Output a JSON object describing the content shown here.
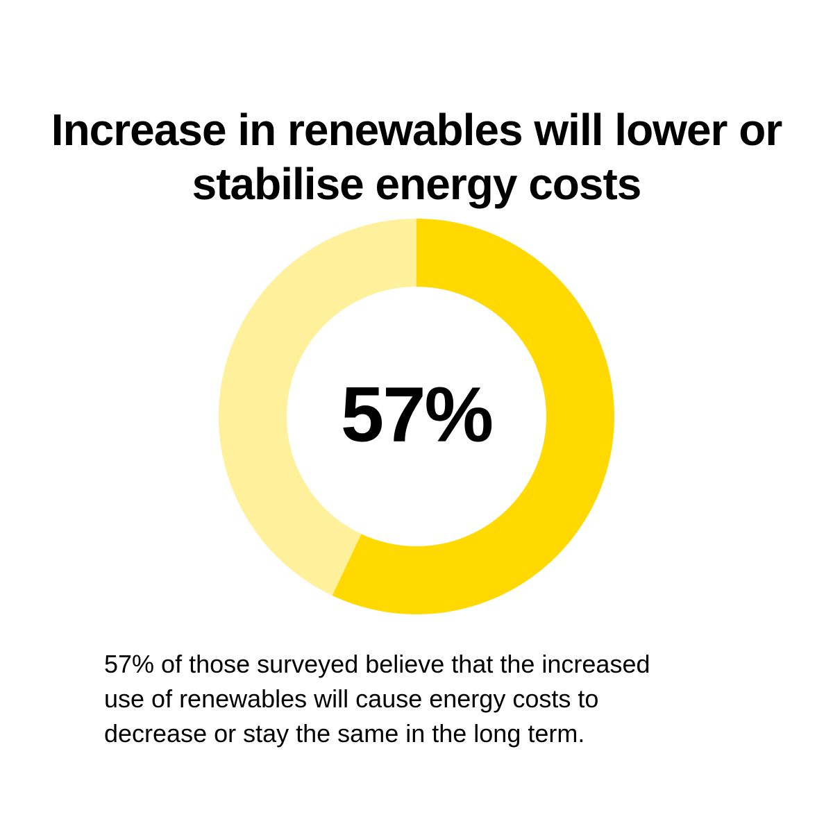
{
  "chart_data": {
    "type": "donut",
    "title": "Increase in renewables will lower or stabilise energy costs",
    "values": [
      57,
      43
    ],
    "value_labels": [
      "57%",
      null
    ],
    "colors": [
      "#ffd900",
      "#fff09b"
    ],
    "description": "57% of those surveyed believe that the increased use of renewables will cause energy costs to decrease or stay the same in the long term."
  }
}
